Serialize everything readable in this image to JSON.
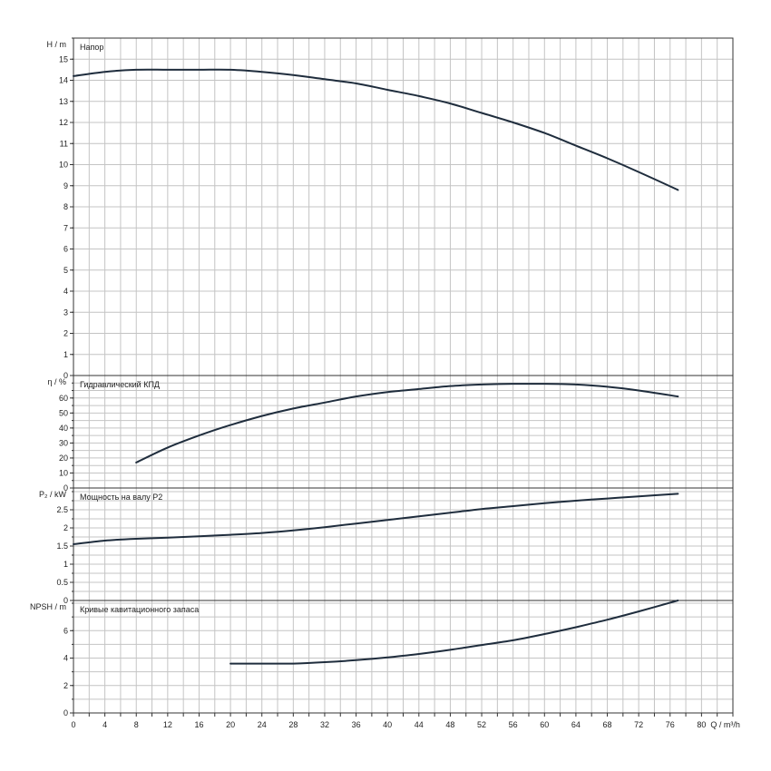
{
  "chart_data": [
    {
      "type": "line",
      "title": "Напор",
      "ylabel": "H / m",
      "ylim": [
        0,
        16
      ],
      "yticks": [
        0,
        1,
        2,
        3,
        4,
        5,
        6,
        7,
        8,
        9,
        10,
        11,
        12,
        13,
        14,
        15
      ],
      "grid": true,
      "series": [
        {
          "x": [
            0,
            4,
            8,
            12,
            16,
            20,
            24,
            28,
            32,
            36,
            40,
            44,
            48,
            52,
            56,
            60,
            64,
            68,
            72,
            77
          ],
          "y": [
            14.2,
            14.4,
            14.5,
            14.5,
            14.5,
            14.5,
            14.4,
            14.25,
            14.05,
            13.85,
            13.55,
            13.25,
            12.9,
            12.45,
            12.0,
            11.5,
            10.9,
            10.3,
            9.65,
            8.8
          ]
        }
      ]
    },
    {
      "type": "line",
      "title": "Гидравлический КПД",
      "ylabel": "η / %",
      "ylim": [
        0,
        75
      ],
      "yticks": [
        0,
        10,
        20,
        30,
        40,
        50,
        60
      ],
      "grid": true,
      "series": [
        {
          "x": [
            8,
            12,
            16,
            20,
            24,
            28,
            32,
            36,
            40,
            44,
            48,
            52,
            56,
            60,
            64,
            68,
            72,
            77
          ],
          "y": [
            17,
            27,
            35,
            42,
            48,
            53,
            57,
            61,
            64,
            66,
            68,
            69,
            69.5,
            69.5,
            69,
            67.5,
            65,
            61
          ]
        }
      ]
    },
    {
      "type": "line",
      "title": "Мощность на валу P2",
      "ylabel": "P₂ / kW",
      "ylim": [
        0,
        3.1
      ],
      "yticks": [
        0,
        0.5,
        1,
        1.5,
        2,
        2.5
      ],
      "grid": true,
      "series": [
        {
          "x": [
            0,
            4,
            8,
            12,
            16,
            20,
            24,
            28,
            32,
            36,
            40,
            44,
            48,
            52,
            56,
            60,
            64,
            68,
            72,
            77
          ],
          "y": [
            1.55,
            1.65,
            1.7,
            1.73,
            1.77,
            1.81,
            1.86,
            1.93,
            2.02,
            2.12,
            2.22,
            2.32,
            2.42,
            2.52,
            2.6,
            2.68,
            2.75,
            2.81,
            2.87,
            2.94
          ]
        }
      ]
    },
    {
      "type": "line",
      "title": "Кривые кавитационного запаса",
      "ylabel": "NPSH / m",
      "ylim": [
        0,
        8.2
      ],
      "yticks": [
        0,
        2,
        4,
        6
      ],
      "grid": true,
      "series": [
        {
          "x": [
            20,
            24,
            28,
            32,
            36,
            40,
            44,
            48,
            52,
            56,
            60,
            64,
            68,
            72,
            77
          ],
          "y": [
            3.6,
            3.6,
            3.6,
            3.7,
            3.85,
            4.05,
            4.3,
            4.6,
            4.95,
            5.3,
            5.75,
            6.25,
            6.8,
            7.4,
            8.2
          ]
        }
      ]
    }
  ],
  "x_axis": {
    "label": "Q / m³/h",
    "xlim": [
      0,
      84
    ],
    "ticks": [
      0,
      4,
      8,
      12,
      16,
      20,
      24,
      28,
      32,
      36,
      40,
      44,
      48,
      52,
      56,
      60,
      64,
      68,
      72,
      76,
      80
    ]
  }
}
